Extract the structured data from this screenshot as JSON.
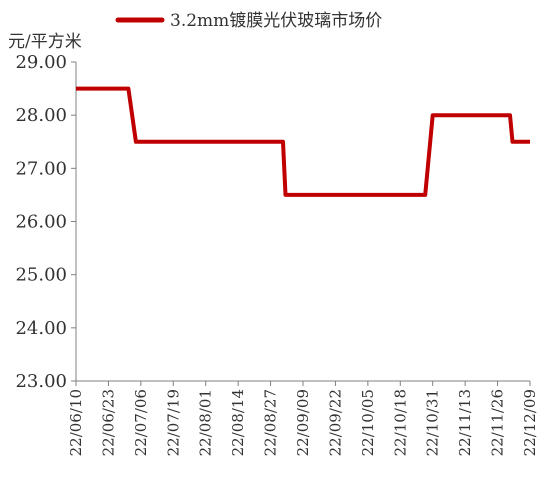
{
  "chart_data": {
    "type": "line",
    "ylabel": "元/平方米",
    "ylim": [
      23.0,
      29.0
    ],
    "yticks": [
      "23.00",
      "24.00",
      "25.00",
      "26.00",
      "27.00",
      "28.00",
      "29.00"
    ],
    "xticks": [
      "22/06/10",
      "22/06/23",
      "22/07/06",
      "22/07/19",
      "22/08/01",
      "22/08/14",
      "22/08/27",
      "22/09/09",
      "22/09/22",
      "22/10/05",
      "22/10/18",
      "22/10/31",
      "22/11/13",
      "22/11/26",
      "22/12/09"
    ],
    "series": [
      {
        "name": "3.2mm镀膜光伏玻璃市场价",
        "color": "#c00000",
        "points": [
          {
            "x": "2022-06-10",
            "y": 28.5
          },
          {
            "x": "2022-07-01",
            "y": 28.5
          },
          {
            "x": "2022-07-04",
            "y": 27.5
          },
          {
            "x": "2022-09-01",
            "y": 27.5
          },
          {
            "x": "2022-09-02",
            "y": 26.5
          },
          {
            "x": "2022-10-28",
            "y": 26.5
          },
          {
            "x": "2022-10-31",
            "y": 28.0
          },
          {
            "x": "2022-12-01",
            "y": 28.0
          },
          {
            "x": "2022-12-02",
            "y": 27.5
          },
          {
            "x": "2022-12-09",
            "y": 27.5
          }
        ]
      }
    ],
    "legend": "top",
    "grid": false
  }
}
